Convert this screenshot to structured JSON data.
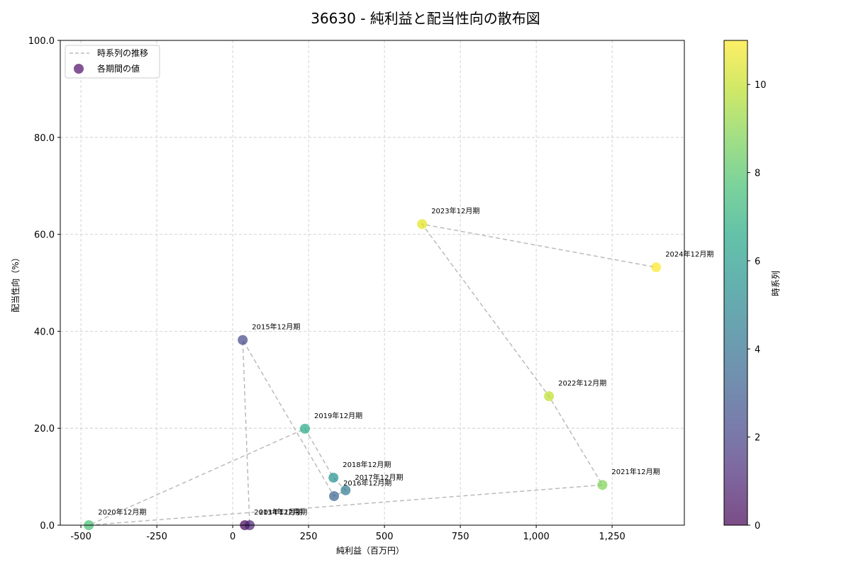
{
  "chart_data": {
    "type": "scatter",
    "title": "36630 - 純利益と配当性向の散布図",
    "xlabel": "純利益（百万円）",
    "ylabel": "配当性向（%）",
    "xlim": [
      -568,
      1488
    ],
    "ylim": [
      0,
      100
    ],
    "xticks": [
      -500,
      -250,
      0,
      250,
      500,
      750,
      1000,
      1250
    ],
    "xtick_labels": [
      "-500",
      "-250",
      "0",
      "250",
      "500",
      "750",
      "1,000",
      "1,250"
    ],
    "yticks": [
      0,
      20,
      40,
      60,
      80,
      100
    ],
    "ytick_labels": [
      "0.0",
      "20.0",
      "40.0",
      "60.0",
      "80.0",
      "100.0"
    ],
    "grid": true,
    "legend": {
      "position": "upper left",
      "entries": [
        {
          "label": "時系列の推移",
          "kind": "dashed-line",
          "color": "#bbbbbb"
        },
        {
          "label": "各期間の値",
          "kind": "marker",
          "color": "#75418a"
        }
      ]
    },
    "colorbar": {
      "label": "時系列",
      "min": 0,
      "max": 11,
      "ticks": [
        0,
        2,
        4,
        6,
        8,
        10
      ],
      "colormap": "viridis",
      "alpha": 0.7
    },
    "points": [
      {
        "label": "2013年12月期",
        "x": 40,
        "y": 0.0,
        "t": 0
      },
      {
        "label": "2014年12月期",
        "x": 56,
        "y": 0.0,
        "t": 1
      },
      {
        "label": "2015年12月期",
        "x": 33,
        "y": 38.2,
        "t": 2
      },
      {
        "label": "2016年12月期",
        "x": 334,
        "y": 6.0,
        "t": 3
      },
      {
        "label": "2017年12月期",
        "x": 372,
        "y": 7.2,
        "t": 4
      },
      {
        "label": "2018年12月期",
        "x": 332,
        "y": 9.8,
        "t": 5
      },
      {
        "label": "2019年12月期",
        "x": 238,
        "y": 19.9,
        "t": 6
      },
      {
        "label": "2020年12月期",
        "x": -474,
        "y": 0.0,
        "t": 7
      },
      {
        "label": "2021年12月期",
        "x": 1218,
        "y": 8.3,
        "t": 8
      },
      {
        "label": "2022年12月期",
        "x": 1042,
        "y": 26.6,
        "t": 9
      },
      {
        "label": "2023年12月期",
        "x": 624,
        "y": 62.1,
        "t": 10
      },
      {
        "label": "2024年12月期",
        "x": 1395,
        "y": 53.2,
        "t": 11
      }
    ]
  },
  "colors": {
    "line": "#bbbbbb",
    "grid": "#c8c8c8",
    "viridis": [
      "#440154",
      "#482475",
      "#414487",
      "#355f8d",
      "#2a788e",
      "#21908d",
      "#22a884",
      "#43bf71",
      "#7ad151",
      "#bddf26",
      "#e2e418",
      "#fde725"
    ]
  }
}
